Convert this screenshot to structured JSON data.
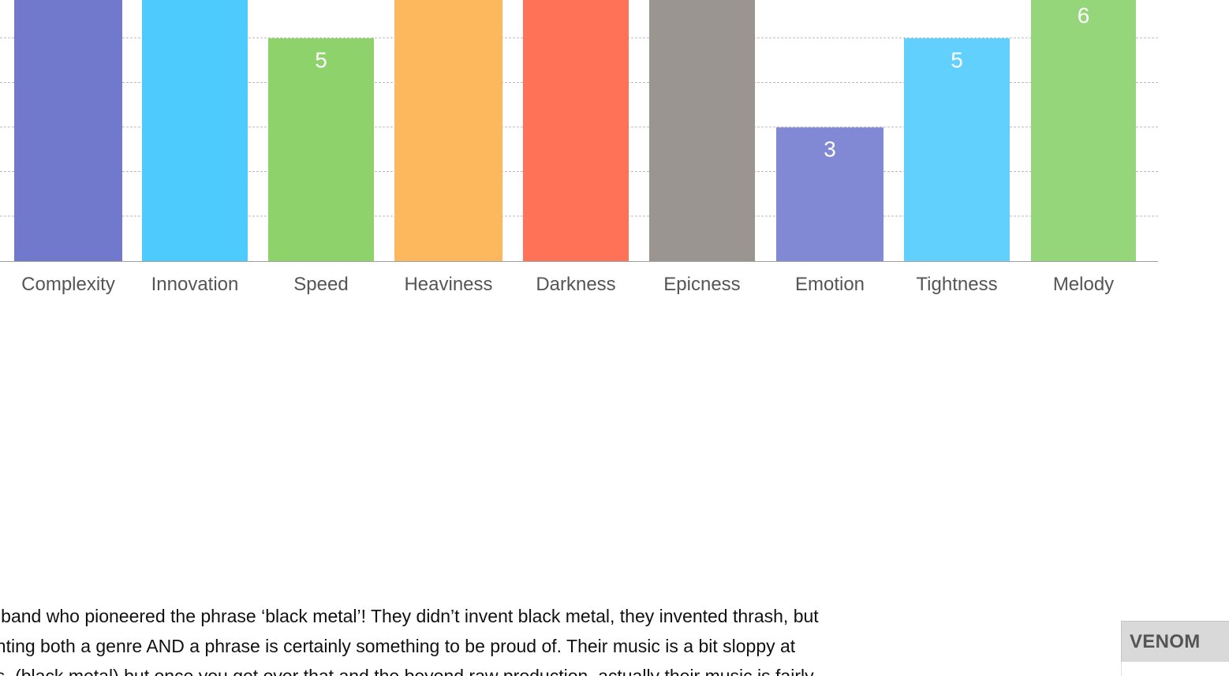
{
  "chart_data": {
    "type": "bar",
    "categories": [
      "Complexity",
      "Innovation",
      "Speed",
      "Heaviness",
      "Darkness",
      "Epicness",
      "Emotion",
      "Tightness",
      "Melody"
    ],
    "values": [
      null,
      null,
      5,
      null,
      null,
      null,
      3,
      5,
      6
    ],
    "visible_value_labels": [
      "",
      "",
      "5",
      "",
      "",
      "",
      "3",
      "5",
      "6"
    ],
    "colors": [
      "#7179cc",
      "#4ecbfd",
      "#8ed26c",
      "#fdb85d",
      "#ff7258",
      "#9a9590",
      "#8289d4",
      "#62d0fd",
      "#96d67a"
    ],
    "grid": true,
    "grid_style": "dashed",
    "legend": "none"
  },
  "description": {
    "lines": [
      "e band who pioneered the phrase ‘black metal’! They didn’t invent black metal, they invented thrash, but",
      "enting both a genre AND a phrase is certainly something to be proud of. Their music is a bit sloppy at",
      "es. (black metal) but once you get over that and the beyond raw production, actually their music is fairly"
    ]
  },
  "tag": {
    "label": "VENOM"
  }
}
